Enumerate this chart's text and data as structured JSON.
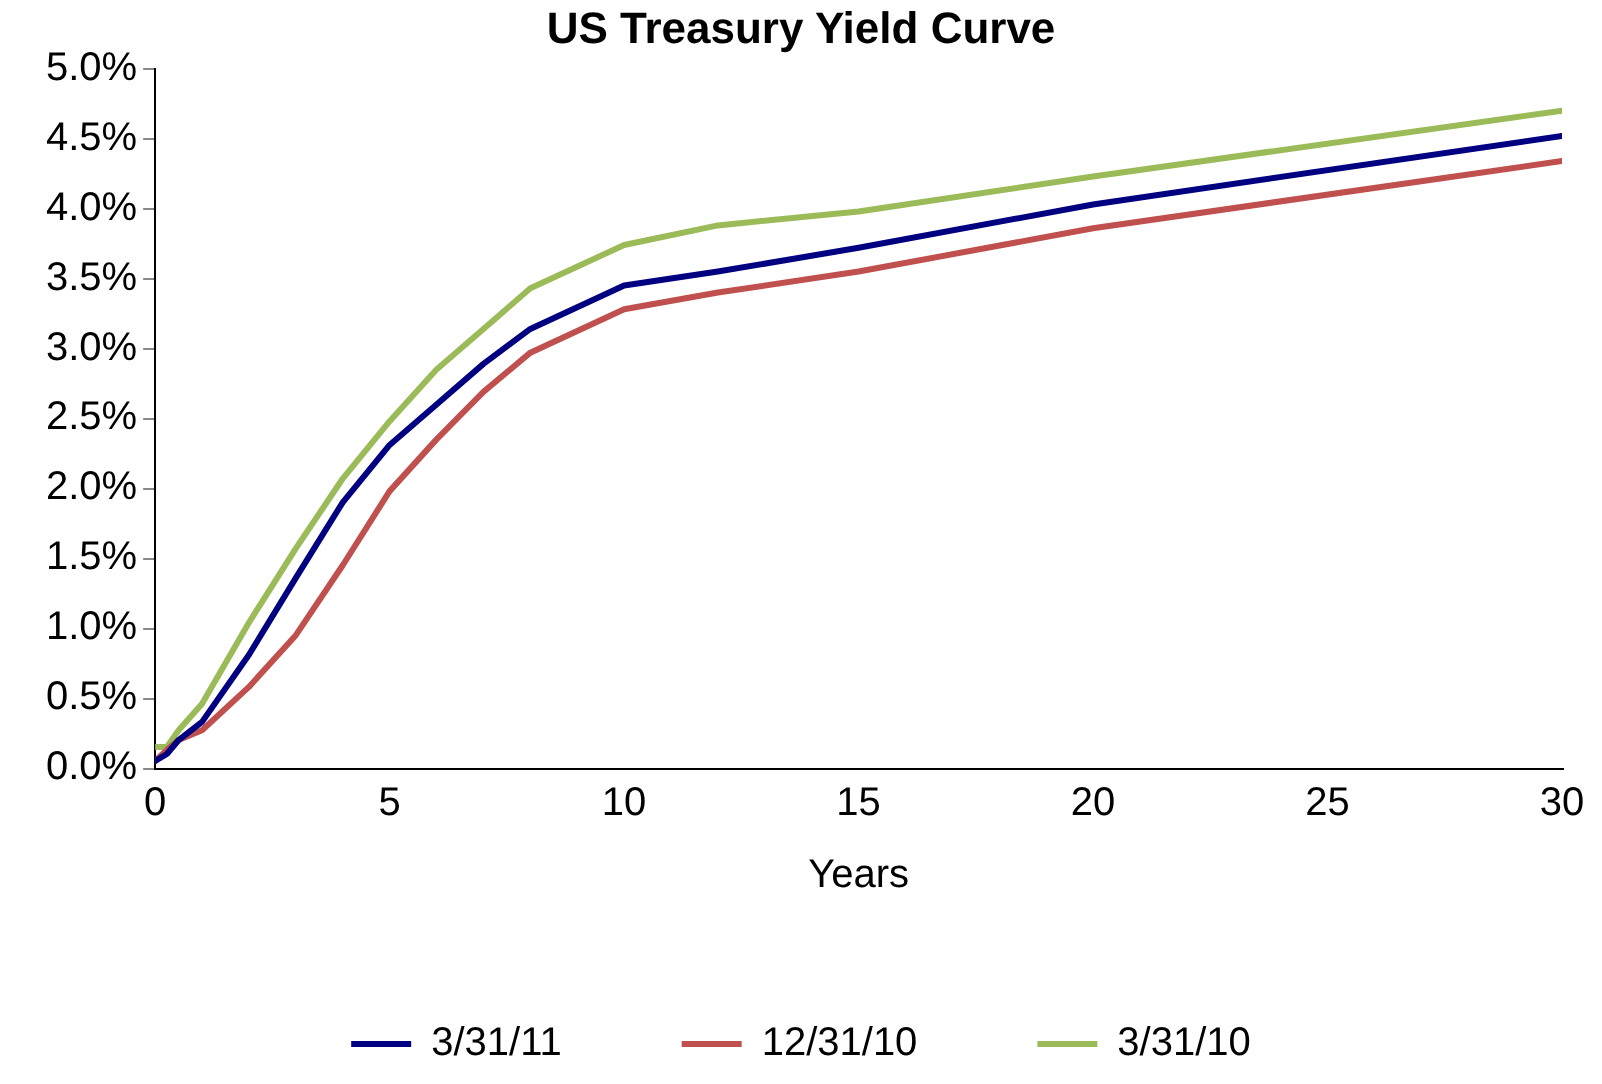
{
  "chart_data": {
    "type": "line",
    "title": "US Treasury Yield Curve",
    "xlabel": "Years",
    "xlim": [
      0,
      30
    ],
    "xticks": [
      0,
      5,
      10,
      15,
      20,
      25,
      30
    ],
    "ylim": [
      0,
      5
    ],
    "yticks": [
      {
        "value": 0,
        "label": "0.0%"
      },
      {
        "value": 0.5,
        "label": "0.5%"
      },
      {
        "value": 1,
        "label": "1.0%"
      },
      {
        "value": 1.5,
        "label": "1.5%"
      },
      {
        "value": 2,
        "label": "2.0%"
      },
      {
        "value": 2.5,
        "label": "2.5%"
      },
      {
        "value": 3,
        "label": "3.0%"
      },
      {
        "value": 3.5,
        "label": "3.5%"
      },
      {
        "value": 4,
        "label": "4.0%"
      },
      {
        "value": 4.5,
        "label": "4.5%"
      },
      {
        "value": 5,
        "label": "5.0%"
      }
    ],
    "grid": false,
    "legend": "bottom",
    "marker": "none",
    "line_style": "solid",
    "x": [
      0,
      0.25,
      0.5,
      1,
      2,
      3,
      4,
      5,
      6,
      7,
      8,
      10,
      12,
      15,
      20,
      30
    ],
    "series": [
      {
        "name": "3/31/11",
        "color": "#000080",
        "values": [
          0.05,
          0.1,
          0.2,
          0.33,
          0.81,
          1.36,
          1.9,
          2.31,
          2.6,
          2.89,
          3.14,
          3.45,
          3.55,
          3.72,
          4.03,
          4.52
        ]
      },
      {
        "name": "12/31/10",
        "color": "#c0504d",
        "values": [
          0.05,
          0.13,
          0.2,
          0.27,
          0.58,
          0.95,
          1.45,
          1.98,
          2.35,
          2.69,
          2.97,
          3.28,
          3.4,
          3.55,
          3.86,
          4.34
        ]
      },
      {
        "name": "3/31/10",
        "color": "#9bbb59",
        "values": [
          0.15,
          0.15,
          0.27,
          0.46,
          1.04,
          1.57,
          2.07,
          2.48,
          2.85,
          3.14,
          3.43,
          3.74,
          3.88,
          3.98,
          4.23,
          4.7
        ]
      }
    ]
  }
}
